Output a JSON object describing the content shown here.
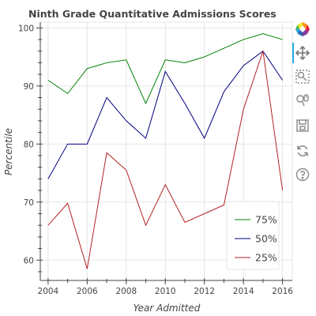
{
  "chart_data": {
    "type": "line",
    "title": "Ninth Grade Quantitative Admissions Scores",
    "xlabel": "Year Admitted",
    "ylabel": "Percentile",
    "xlim": [
      2003.6,
      2016.5
    ],
    "ylim": [
      56.5,
      101
    ],
    "xticks": [
      2004,
      2006,
      2008,
      2010,
      2012,
      2014,
      2016
    ],
    "yticks": [
      60,
      70,
      80,
      90,
      100
    ],
    "x": [
      2004,
      2005,
      2006,
      2007,
      2008,
      2009,
      2010,
      2011,
      2012,
      2013,
      2014,
      2015,
      2016
    ],
    "grid": true,
    "legend_position": "bottom-right",
    "series": [
      {
        "name": "75%",
        "color": "#008000",
        "values": [
          91,
          88.7,
          93,
          94,
          94.5,
          87,
          94.5,
          94,
          95,
          96.5,
          98,
          99,
          98
        ]
      },
      {
        "name": "50%",
        "color": "#000080",
        "values": [
          74,
          80,
          80,
          88,
          84,
          81,
          92.5,
          87,
          81,
          89,
          93.5,
          96,
          91
        ]
      },
      {
        "name": "25%",
        "color": "#b22222",
        "values": [
          66,
          69.8,
          58.5,
          78.5,
          75.5,
          66,
          73,
          66.5,
          68,
          69.5,
          86,
          96,
          72
        ]
      }
    ]
  },
  "toolbar": {
    "tools": [
      {
        "name": "bokeh-logo",
        "icon": "bokeh-logo-icon"
      },
      {
        "name": "pan-tool",
        "icon": "pan-icon",
        "active": true
      },
      {
        "name": "box-zoom-tool",
        "icon": "box-zoom-icon"
      },
      {
        "name": "wheel-zoom-tool",
        "icon": "wheel-zoom-icon"
      },
      {
        "name": "save-tool",
        "icon": "save-icon"
      },
      {
        "name": "reset-tool",
        "icon": "reset-icon"
      },
      {
        "name": "help-tool",
        "icon": "help-icon"
      }
    ],
    "accent": "#26aae1"
  }
}
